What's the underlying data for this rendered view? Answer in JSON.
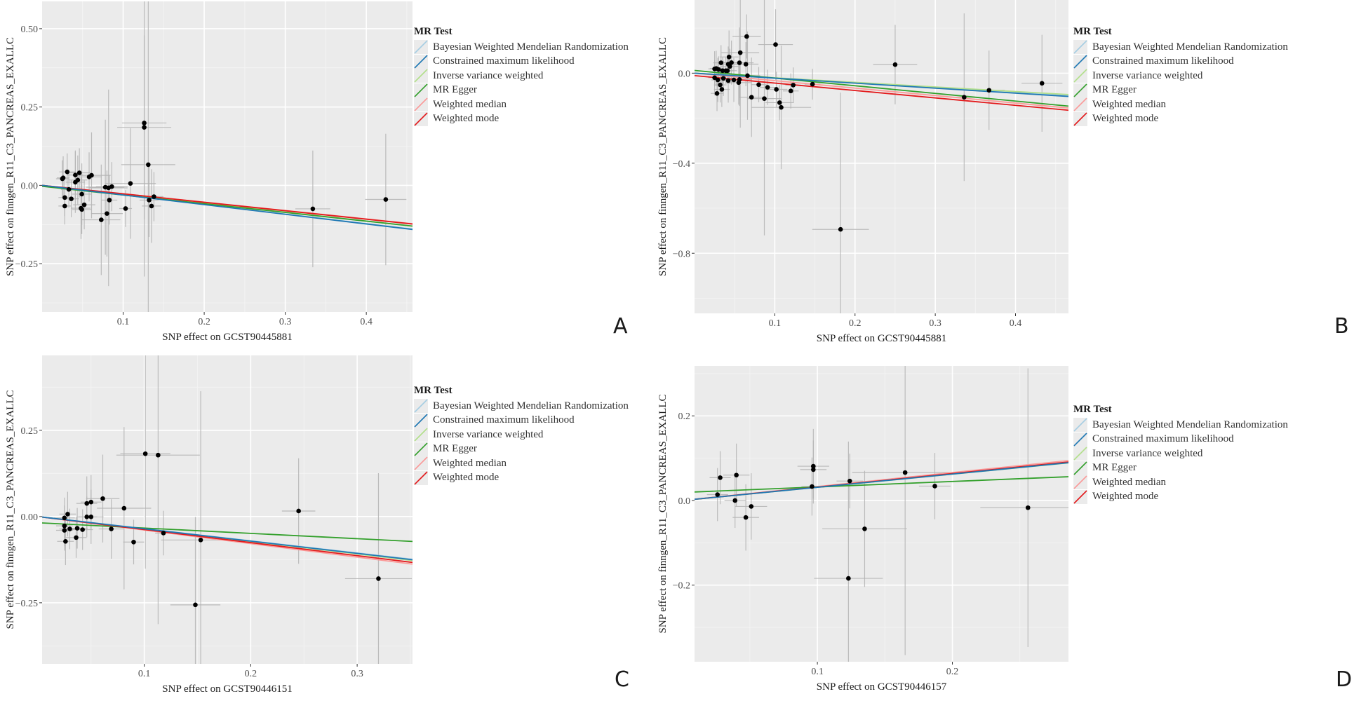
{
  "figure": {
    "legend_title": "MR Test",
    "methods": [
      {
        "key": "bwmr",
        "label": "Bayesian Weighted Mendelian Randomization",
        "color": "#a6cee3"
      },
      {
        "key": "cml",
        "label": "Constrained maximum likelihood",
        "color": "#1f78b4"
      },
      {
        "key": "ivw",
        "label": "Inverse variance weighted",
        "color": "#b2df8a"
      },
      {
        "key": "egger",
        "label": "MR Egger",
        "color": "#33a02c"
      },
      {
        "key": "wmedian",
        "label": "Weighted median",
        "color": "#fb9a99"
      },
      {
        "key": "wmode",
        "label": "Weighted mode",
        "color": "#e31a1c"
      }
    ],
    "panel_background": "#ebebeb",
    "point_color": "#000000",
    "errorbar_color": "#b3b3b3"
  },
  "chart_data": [
    {
      "panel": "A",
      "type": "scatter",
      "title": "",
      "xlabel": "SNP effect on GCST90445881",
      "ylabel": "SNP effect on finngen_R11_C3_PANCREAS_EXALLC",
      "xlim": [
        0.0,
        0.457
      ],
      "ylim": [
        -0.404,
        0.587
      ],
      "xticks": [
        0.1,
        0.2,
        0.3,
        0.4
      ],
      "xtick_labels": [
        "0.1",
        "0.2",
        "0.3",
        "0.4"
      ],
      "yticks": [
        -0.25,
        0.0,
        0.25,
        0.5
      ],
      "ytick_labels": [
        "-0.25",
        "0.00",
        "0.25",
        "0.50"
      ],
      "grid": true,
      "legend_position": "right",
      "points": [
        {
          "x": 0.026,
          "y": 0.024,
          "se_x": 0.004,
          "se_y": 0.035
        },
        {
          "x": 0.025,
          "y": 0.021,
          "se_x": 0.004,
          "se_y": 0.03
        },
        {
          "x": 0.031,
          "y": 0.043,
          "se_x": 0.005,
          "se_y": 0.03
        },
        {
          "x": 0.028,
          "y": -0.039,
          "se_x": 0.004,
          "se_y": 0.03
        },
        {
          "x": 0.028,
          "y": -0.066,
          "se_x": 0.004,
          "se_y": 0.03
        },
        {
          "x": 0.033,
          "y": -0.013,
          "se_x": 0.005,
          "se_y": 0.03
        },
        {
          "x": 0.036,
          "y": -0.043,
          "se_x": 0.005,
          "se_y": 0.03
        },
        {
          "x": 0.041,
          "y": 0.033,
          "se_x": 0.005,
          "se_y": 0.04
        },
        {
          "x": 0.041,
          "y": 0.01,
          "se_x": 0.006,
          "se_y": 0.05
        },
        {
          "x": 0.044,
          "y": 0.017,
          "se_x": 0.006,
          "se_y": 0.04
        },
        {
          "x": 0.046,
          "y": 0.04,
          "se_x": 0.007,
          "se_y": 0.04
        },
        {
          "x": 0.049,
          "y": -0.028,
          "se_x": 0.006,
          "se_y": 0.05
        },
        {
          "x": 0.048,
          "y": -0.073,
          "se_x": 0.006,
          "se_y": 0.05
        },
        {
          "x": 0.049,
          "y": -0.077,
          "se_x": 0.006,
          "se_y": 0.04
        },
        {
          "x": 0.052,
          "y": -0.062,
          "se_x": 0.007,
          "se_y": 0.04
        },
        {
          "x": 0.058,
          "y": 0.027,
          "se_x": 0.008,
          "se_y": 0.04
        },
        {
          "x": 0.061,
          "y": 0.032,
          "se_x": 0.012,
          "se_y": 0.07
        },
        {
          "x": 0.073,
          "y": -0.11,
          "se_x": 0.012,
          "se_y": 0.09
        },
        {
          "x": 0.078,
          "y": -0.006,
          "se_x": 0.012,
          "se_y": 0.11
        },
        {
          "x": 0.082,
          "y": -0.008,
          "se_x": 0.012,
          "se_y": 0.16
        },
        {
          "x": 0.086,
          "y": -0.004,
          "se_x": 0.01,
          "se_y": 0.04
        },
        {
          "x": 0.083,
          "y": -0.047,
          "se_x": 0.005,
          "se_y": 0.04
        },
        {
          "x": 0.08,
          "y": -0.09,
          "se_x": 0.01,
          "se_y": 0.07
        },
        {
          "x": 0.103,
          "y": -0.074,
          "se_x": 0.004,
          "se_y": 0.03
        },
        {
          "x": 0.109,
          "y": 0.006,
          "se_x": 0.016,
          "se_y": 0.09
        },
        {
          "x": 0.126,
          "y": 0.199,
          "se_x": 0.014,
          "se_y": 0.25
        },
        {
          "x": 0.126,
          "y": 0.185,
          "se_x": 0.017,
          "se_y": 0.15
        },
        {
          "x": 0.131,
          "y": 0.066,
          "se_x": 0.017,
          "se_y": 0.47
        },
        {
          "x": 0.132,
          "y": -0.047,
          "se_x": 0.006,
          "se_y": 0.06
        },
        {
          "x": 0.135,
          "y": -0.066,
          "se_x": 0.006,
          "se_y": 0.06
        },
        {
          "x": 0.138,
          "y": -0.036,
          "se_x": 0.006,
          "se_y": 0.04
        },
        {
          "x": 0.334,
          "y": -0.075,
          "se_x": 0.011,
          "se_y": 0.095
        },
        {
          "x": 0.424,
          "y": -0.045,
          "se_x": 0.013,
          "se_y": 0.107
        }
      ],
      "lines": [
        {
          "method": "bwmr",
          "intercept": 0.0,
          "slope": -0.305
        },
        {
          "method": "cml",
          "intercept": 0.0,
          "slope": -0.308
        },
        {
          "method": "ivw",
          "intercept": 0.0,
          "slope": -0.285
        },
        {
          "method": "egger",
          "intercept": -0.003,
          "slope": -0.278
        },
        {
          "method": "wmedian",
          "intercept": 0.0,
          "slope": -0.268
        },
        {
          "method": "wmode",
          "intercept": 0.0,
          "slope": -0.27
        }
      ]
    },
    {
      "panel": "B",
      "type": "scatter",
      "title": "",
      "xlabel": "SNP effect on GCST90445881",
      "ylabel": "SNP effect on finngen_R11_C3_PANCREAS_EXALLC",
      "xlim": [
        0.0,
        0.466
      ],
      "ylim": [
        -1.067,
        0.325
      ],
      "xticks": [
        0.1,
        0.2,
        0.3,
        0.4
      ],
      "xtick_labels": [
        "0.1",
        "0.2",
        "0.3",
        "0.4"
      ],
      "yticks": [
        -0.8,
        -0.4,
        0.0
      ],
      "ytick_labels": [
        "-0.8",
        "-0.4",
        "0.0"
      ],
      "grid": true,
      "legend_position": "right",
      "points": [
        {
          "x": 0.025,
          "y": 0.019,
          "se_x": 0.004,
          "se_y": 0.04
        },
        {
          "x": 0.027,
          "y": 0.021,
          "se_x": 0.004,
          "se_y": 0.04
        },
        {
          "x": 0.03,
          "y": 0.016,
          "se_x": 0.004,
          "se_y": 0.03
        },
        {
          "x": 0.025,
          "y": -0.02,
          "se_x": 0.004,
          "se_y": 0.04
        },
        {
          "x": 0.029,
          "y": -0.03,
          "se_x": 0.004,
          "se_y": 0.05
        },
        {
          "x": 0.028,
          "y": -0.09,
          "se_x": 0.004,
          "se_y": 0.04
        },
        {
          "x": 0.032,
          "y": -0.052,
          "se_x": 0.004,
          "se_y": 0.04
        },
        {
          "x": 0.033,
          "y": 0.046,
          "se_x": 0.005,
          "se_y": 0.04
        },
        {
          "x": 0.034,
          "y": -0.072,
          "se_x": 0.005,
          "se_y": 0.04
        },
        {
          "x": 0.036,
          "y": -0.023,
          "se_x": 0.005,
          "se_y": 0.04
        },
        {
          "x": 0.035,
          "y": 0.011,
          "se_x": 0.005,
          "se_y": 0.03
        },
        {
          "x": 0.039,
          "y": 0.011,
          "se_x": 0.005,
          "se_y": 0.03
        },
        {
          "x": 0.041,
          "y": 0.011,
          "se_x": 0.006,
          "se_y": 0.03
        },
        {
          "x": 0.042,
          "y": 0.04,
          "se_x": 0.006,
          "se_y": 0.04
        },
        {
          "x": 0.043,
          "y": 0.072,
          "se_x": 0.006,
          "se_y": 0.06
        },
        {
          "x": 0.042,
          "y": -0.033,
          "se_x": 0.006,
          "se_y": 0.05
        },
        {
          "x": 0.046,
          "y": 0.047,
          "se_x": 0.007,
          "se_y": 0.05
        },
        {
          "x": 0.044,
          "y": 0.03,
          "se_x": 0.006,
          "se_y": 0.04
        },
        {
          "x": 0.049,
          "y": -0.03,
          "se_x": 0.007,
          "se_y": 0.05
        },
        {
          "x": 0.055,
          "y": -0.042,
          "se_x": 0.008,
          "se_y": 0.05
        },
        {
          "x": 0.056,
          "y": -0.028,
          "se_x": 0.008,
          "se_y": 0.06
        },
        {
          "x": 0.056,
          "y": 0.046,
          "se_x": 0.009,
          "se_y": 0.08
        },
        {
          "x": 0.057,
          "y": 0.091,
          "se_x": 0.012,
          "se_y": 0.17
        },
        {
          "x": 0.064,
          "y": 0.04,
          "se_x": 0.008,
          "se_y": 0.05
        },
        {
          "x": 0.065,
          "y": 0.163,
          "se_x": 0.009,
          "se_y": 0.05
        },
        {
          "x": 0.066,
          "y": -0.011,
          "se_x": 0.008,
          "se_y": 0.1
        },
        {
          "x": 0.071,
          "y": -0.107,
          "se_x": 0.008,
          "se_y": 0.09
        },
        {
          "x": 0.08,
          "y": -0.051,
          "se_x": 0.005,
          "se_y": 0.04
        },
        {
          "x": 0.087,
          "y": -0.113,
          "se_x": 0.011,
          "se_y": 0.31
        },
        {
          "x": 0.091,
          "y": -0.063,
          "se_x": 0.005,
          "se_y": 0.04
        },
        {
          "x": 0.101,
          "y": 0.127,
          "se_x": 0.011,
          "se_y": 0.08
        },
        {
          "x": 0.102,
          "y": -0.072,
          "se_x": 0.007,
          "se_y": 0.04
        },
        {
          "x": 0.106,
          "y": -0.131,
          "se_x": 0.009,
          "se_y": 0.04
        },
        {
          "x": 0.108,
          "y": -0.152,
          "se_x": 0.019,
          "se_y": 0.14
        },
        {
          "x": 0.12,
          "y": -0.079,
          "se_x": 0.005,
          "se_y": 0.04
        },
        {
          "x": 0.123,
          "y": -0.053,
          "se_x": 0.005,
          "se_y": 0.04
        },
        {
          "x": 0.147,
          "y": -0.049,
          "se_x": 0.005,
          "se_y": 0.035
        },
        {
          "x": 0.182,
          "y": -0.694,
          "se_x": 0.018,
          "se_y": 0.31
        },
        {
          "x": 0.25,
          "y": 0.038,
          "se_x": 0.014,
          "se_y": 0.09
        },
        {
          "x": 0.336,
          "y": -0.107,
          "se_x": 0.009,
          "se_y": 0.19
        },
        {
          "x": 0.367,
          "y": -0.076,
          "se_x": 0.01,
          "se_y": 0.09
        },
        {
          "x": 0.433,
          "y": -0.045,
          "se_x": 0.013,
          "se_y": 0.11
        }
      ],
      "lines": [
        {
          "method": "bwmr",
          "intercept": 0.0,
          "slope": -0.212
        },
        {
          "method": "cml",
          "intercept": 0.0,
          "slope": -0.222
        },
        {
          "method": "ivw",
          "intercept": 0.0,
          "slope": -0.204
        },
        {
          "method": "egger",
          "intercept": 0.012,
          "slope": -0.34
        },
        {
          "method": "wmedian",
          "intercept": 0.0,
          "slope": -0.332
        },
        {
          "method": "wmode",
          "intercept": -0.011,
          "slope": -0.33
        }
      ]
    },
    {
      "panel": "C",
      "type": "scatter",
      "title": "",
      "xlabel": "SNP effect on GCST90446151",
      "ylabel": "SNP effect on finngen_R11_C3_PANCREAS_EXALLC",
      "xlim": [
        0.004,
        0.352
      ],
      "ylim": [
        -0.427,
        0.467
      ],
      "xticks": [
        0.1,
        0.2,
        0.3
      ],
      "xtick_labels": [
        "0.1",
        "0.2",
        "0.3"
      ],
      "yticks": [
        -0.25,
        0.0,
        0.25
      ],
      "ytick_labels": [
        "-0.25",
        "0.00",
        "0.25"
      ],
      "grid": true,
      "legend_position": "right",
      "points": [
        {
          "x": 0.025,
          "y": -0.027,
          "se_x": 0.004,
          "se_y": 0.03
        },
        {
          "x": 0.025,
          "y": -0.004,
          "se_x": 0.005,
          "se_y": 0.03
        },
        {
          "x": 0.025,
          "y": -0.04,
          "se_x": 0.004,
          "se_y": 0.03
        },
        {
          "x": 0.026,
          "y": -0.072,
          "se_x": 0.004,
          "se_y": 0.035
        },
        {
          "x": 0.028,
          "y": 0.007,
          "se_x": 0.004,
          "se_y": 0.033
        },
        {
          "x": 0.03,
          "y": -0.036,
          "se_x": 0.005,
          "se_y": 0.03
        },
        {
          "x": 0.036,
          "y": -0.061,
          "se_x": 0.005,
          "se_y": 0.03
        },
        {
          "x": 0.037,
          "y": -0.034,
          "se_x": 0.005,
          "se_y": 0.03
        },
        {
          "x": 0.042,
          "y": -0.038,
          "se_x": 0.005,
          "se_y": 0.03
        },
        {
          "x": 0.046,
          "y": 0.038,
          "se_x": 0.005,
          "se_y": 0.04
        },
        {
          "x": 0.046,
          "y": -0.001,
          "se_x": 0.005,
          "se_y": 0.03
        },
        {
          "x": 0.05,
          "y": 0.042,
          "se_x": 0.005,
          "se_y": 0.04
        },
        {
          "x": 0.05,
          "y": -0.001,
          "se_x": 0.006,
          "se_y": 0.04
        },
        {
          "x": 0.061,
          "y": 0.052,
          "se_x": 0.008,
          "se_y": 0.065
        },
        {
          "x": 0.069,
          "y": -0.036,
          "se_x": 0.006,
          "se_y": 0.044
        },
        {
          "x": 0.081,
          "y": 0.024,
          "se_x": 0.013,
          "se_y": 0.12
        },
        {
          "x": 0.09,
          "y": -0.074,
          "se_x": 0.005,
          "se_y": 0.033
        },
        {
          "x": 0.101,
          "y": 0.182,
          "se_x": 0.012,
          "se_y": 0.17
        },
        {
          "x": 0.113,
          "y": 0.178,
          "se_x": 0.02,
          "se_y": 0.25
        },
        {
          "x": 0.118,
          "y": -0.048,
          "se_x": 0.004,
          "se_y": 0.033
        },
        {
          "x": 0.148,
          "y": -0.256,
          "se_x": 0.012,
          "se_y": 0.13
        },
        {
          "x": 0.153,
          "y": -0.068,
          "se_x": 0.019,
          "se_y": 0.22
        },
        {
          "x": 0.245,
          "y": 0.016,
          "se_x": 0.008,
          "se_y": 0.078
        },
        {
          "x": 0.32,
          "y": -0.18,
          "se_x": 0.016,
          "se_y": 0.156
        }
      ],
      "lines": [
        {
          "method": "bwmr",
          "intercept": 0.0,
          "slope": -0.352
        },
        {
          "method": "cml",
          "intercept": 0.0,
          "slope": -0.356
        },
        {
          "method": "ivw",
          "intercept": 0.0,
          "slope": -0.362
        },
        {
          "method": "egger",
          "intercept": -0.018,
          "slope": -0.154
        },
        {
          "method": "wmedian",
          "intercept": 0.0,
          "slope": -0.392
        },
        {
          "method": "wmode",
          "intercept": 0.0,
          "slope": -0.378
        }
      ]
    },
    {
      "panel": "D",
      "type": "scatter",
      "title": "",
      "xlabel": "SNP effect on GCST90446157",
      "ylabel": "SNP effect on finngen_R11_C3_PANCREAS_EXALLC",
      "xlim": [
        0.009,
        0.286
      ],
      "ylim": [
        -0.381,
        0.318
      ],
      "xticks": [
        0.1,
        0.2
      ],
      "xtick_labels": [
        "0.1",
        "0.2"
      ],
      "yticks": [
        -0.2,
        0.0,
        0.2
      ],
      "ytick_labels": [
        "-0.2",
        "0.0",
        "0.2"
      ],
      "grid": true,
      "legend_position": "right",
      "points": [
        {
          "x": 0.026,
          "y": 0.014,
          "se_x": 0.004,
          "se_y": 0.032
        },
        {
          "x": 0.028,
          "y": 0.054,
          "se_x": 0.004,
          "se_y": 0.032
        },
        {
          "x": 0.039,
          "y": 0.0,
          "se_x": 0.004,
          "se_y": 0.033
        },
        {
          "x": 0.04,
          "y": 0.06,
          "se_x": 0.005,
          "se_y": 0.038
        },
        {
          "x": 0.047,
          "y": -0.04,
          "se_x": 0.005,
          "se_y": 0.04
        },
        {
          "x": 0.051,
          "y": -0.014,
          "se_x": 0.006,
          "se_y": 0.04
        },
        {
          "x": 0.096,
          "y": 0.033,
          "se_x": 0.004,
          "se_y": 0.035
        },
        {
          "x": 0.097,
          "y": 0.081,
          "se_x": 0.006,
          "se_y": 0.045
        },
        {
          "x": 0.097,
          "y": 0.073,
          "se_x": 0.005,
          "se_y": 0.035
        },
        {
          "x": 0.123,
          "y": -0.184,
          "se_x": 0.013,
          "se_y": 0.165
        },
        {
          "x": 0.124,
          "y": 0.046,
          "se_x": 0.005,
          "se_y": 0.033
        },
        {
          "x": 0.135,
          "y": -0.067,
          "se_x": 0.016,
          "se_y": 0.07
        },
        {
          "x": 0.165,
          "y": 0.066,
          "se_x": 0.02,
          "se_y": 0.22
        },
        {
          "x": 0.187,
          "y": 0.034,
          "se_x": 0.006,
          "se_y": 0.04
        },
        {
          "x": 0.256,
          "y": -0.017,
          "se_x": 0.018,
          "se_y": 0.168
        }
      ],
      "lines": [
        {
          "method": "bwmr",
          "intercept": 0.0,
          "slope": 0.314
        },
        {
          "method": "cml",
          "intercept": 0.0,
          "slope": 0.312
        },
        {
          "method": "ivw",
          "intercept": 0.0,
          "slope": 0.311
        },
        {
          "method": "egger",
          "intercept": 0.019,
          "slope": 0.13
        },
        {
          "method": "wmedian",
          "intercept": 0.0,
          "slope": 0.33
        },
        {
          "method": "wmode",
          "intercept": 0.0,
          "slope": 0.318
        }
      ]
    }
  ]
}
